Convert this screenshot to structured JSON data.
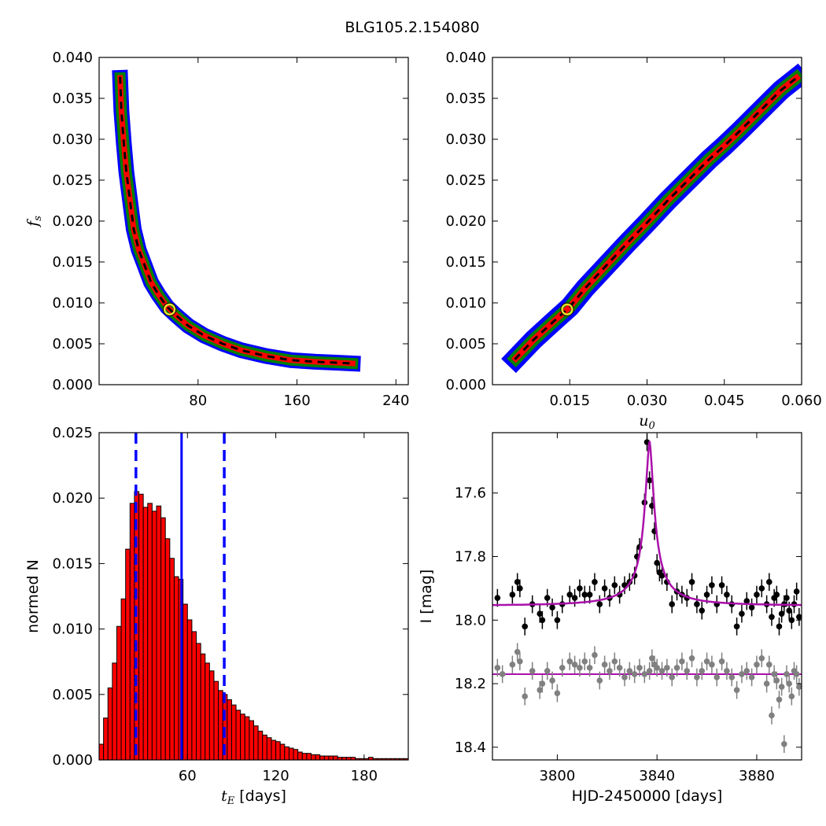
{
  "figure": {
    "title": "BLG105.2.154080"
  },
  "chart_data": [
    {
      "type": "heatmap",
      "panel": "fs-vs-tE",
      "xlabel": "",
      "ylabel": "f_s",
      "xlim": [
        0,
        250
      ],
      "ylim": [
        0,
        0.04
      ],
      "xticks": [
        "80",
        "160",
        "240"
      ],
      "yticks": [
        "0.000",
        "0.005",
        "0.010",
        "0.015",
        "0.020",
        "0.025",
        "0.030",
        "0.035",
        "0.040"
      ],
      "levels": {
        "outer": "#0000ff",
        "middle": "#008000",
        "inner": "#ff0000",
        "peak": "#000000"
      },
      "curve_center": [
        [
          17,
          0.0375
        ],
        [
          18,
          0.0335
        ],
        [
          20,
          0.0295
        ],
        [
          22,
          0.026
        ],
        [
          25,
          0.0225
        ],
        [
          28,
          0.019
        ],
        [
          32,
          0.0165
        ],
        [
          37,
          0.0145
        ],
        [
          42,
          0.0125
        ],
        [
          48,
          0.011
        ],
        [
          55,
          0.0095
        ],
        [
          62,
          0.0085
        ],
        [
          72,
          0.0072
        ],
        [
          85,
          0.006
        ],
        [
          100,
          0.005
        ],
        [
          115,
          0.0042
        ],
        [
          135,
          0.0035
        ],
        [
          155,
          0.003
        ],
        [
          175,
          0.0028
        ],
        [
          190,
          0.0027
        ],
        [
          205,
          0.0026
        ]
      ],
      "best_fit": {
        "x": 57,
        "y": 0.0092,
        "color": "#e2e22f"
      }
    },
    {
      "type": "heatmap",
      "panel": "fs-vs-u0",
      "xlabel": "u_0",
      "ylabel": "",
      "xlim": [
        0,
        0.06
      ],
      "ylim": [
        0,
        0.04
      ],
      "xticks": [
        "0.015",
        "0.030",
        "0.045",
        "0.060"
      ],
      "yticks": [
        "0.000",
        "0.005",
        "0.010",
        "0.015",
        "0.020",
        "0.025",
        "0.030",
        "0.035",
        "0.040"
      ],
      "levels": {
        "outer": "#0000ff",
        "middle": "#008000",
        "inner": "#ff0000",
        "peak": "#000000"
      },
      "curve_center": [
        [
          0.0045,
          0.0032
        ],
        [
          0.008,
          0.0055
        ],
        [
          0.012,
          0.0078
        ],
        [
          0.015,
          0.0095
        ],
        [
          0.018,
          0.0118
        ],
        [
          0.022,
          0.0145
        ],
        [
          0.026,
          0.0172
        ],
        [
          0.03,
          0.0198
        ],
        [
          0.034,
          0.0225
        ],
        [
          0.038,
          0.025
        ],
        [
          0.042,
          0.0275
        ],
        [
          0.045,
          0.0292
        ],
        [
          0.048,
          0.031
        ],
        [
          0.052,
          0.0335
        ],
        [
          0.056,
          0.036
        ],
        [
          0.059,
          0.0375
        ]
      ],
      "best_fit": {
        "x": 0.0145,
        "y": 0.0092,
        "color": "#e2e22f"
      }
    },
    {
      "type": "bar",
      "panel": "tE-histogram",
      "xlabel": "t_E [days]",
      "ylabel": "normed N",
      "xlim": [
        0,
        210
      ],
      "ylim": [
        0,
        0.025
      ],
      "xticks": [
        "60",
        "120",
        "180"
      ],
      "yticks": [
        "0.000",
        "0.005",
        "0.010",
        "0.015",
        "0.020",
        "0.025"
      ],
      "bin_width": 3,
      "bin_start": 0,
      "values": [
        0.0012,
        0.0032,
        0.0055,
        0.0074,
        0.0102,
        0.0123,
        0.0161,
        0.0196,
        0.0205,
        0.0203,
        0.0193,
        0.0196,
        0.019,
        0.0194,
        0.0185,
        0.0169,
        0.0154,
        0.014,
        0.0138,
        0.0119,
        0.0107,
        0.0098,
        0.0089,
        0.0081,
        0.0074,
        0.0068,
        0.006,
        0.0053,
        0.005,
        0.0046,
        0.0042,
        0.0038,
        0.0035,
        0.0033,
        0.003,
        0.0026,
        0.0022,
        0.0019,
        0.0017,
        0.0015,
        0.0014,
        0.0012,
        0.001,
        0.0009,
        0.0008,
        0.0006,
        0.0005,
        0.0005,
        0.0004,
        0.0004,
        0.0003,
        0.0003,
        0.0003,
        0.0003,
        0.0002,
        0.0002,
        0.0002,
        0.0002,
        0.0001,
        0.0001,
        0.0001,
        0.0002,
        0.0001,
        0.0001,
        0.0001,
        0.0001,
        0.0001,
        0.0001,
        0.0001,
        0.0001
      ],
      "bar_color": "#ff0000",
      "median": 56,
      "interval": [
        25,
        85
      ],
      "line_color": "#0000ff"
    },
    {
      "type": "scatter",
      "panel": "light-curve",
      "xlabel": "HJD-2450000 [days]",
      "ylabel": "I [mag]",
      "xlim": [
        3774,
        3898
      ],
      "ylim": [
        18.44,
        17.41
      ],
      "xticks": [
        "3800",
        "3840",
        "3880"
      ],
      "yticks": [
        "17.6",
        "17.8",
        "18.0",
        "18.2",
        "18.4"
      ],
      "model": {
        "t0": 3837.0,
        "baseline": 17.955,
        "peak_mag": 17.435,
        "width": 1.4,
        "color": "#aa10aa"
      },
      "residual_baseline": 18.17,
      "series": [
        {
          "name": "",
          "color": "#000000",
          "points": [
            [
              3776,
              17.93
            ],
            [
              3782,
              17.92
            ],
            [
              3784,
              17.88
            ],
            [
              3785,
              17.9
            ],
            [
              3787,
              18.02
            ],
            [
              3790,
              17.95
            ],
            [
              3793,
              17.98
            ],
            [
              3794,
              18.0
            ],
            [
              3796,
              17.93
            ],
            [
              3798,
              17.96
            ],
            [
              3800,
              18.0
            ],
            [
              3802,
              17.95
            ],
            [
              3805,
              17.92
            ],
            [
              3807,
              17.93
            ],
            [
              3809,
              17.9
            ],
            [
              3811,
              17.92
            ],
            [
              3813,
              17.92
            ],
            [
              3815,
              17.88
            ],
            [
              3817,
              17.95
            ],
            [
              3819,
              17.9
            ],
            [
              3821,
              17.93
            ],
            [
              3823,
              17.89
            ],
            [
              3825,
              17.92
            ],
            [
              3827,
              17.89
            ],
            [
              3829,
              17.88
            ],
            [
              3831,
              17.86
            ],
            [
              3832,
              17.8
            ],
            [
              3833,
              17.77
            ],
            [
              3835,
              17.63
            ],
            [
              3836,
              17.44
            ],
            [
              3837,
              17.56
            ],
            [
              3838,
              17.64
            ],
            [
              3839,
              17.72
            ],
            [
              3840,
              17.82
            ],
            [
              3841,
              17.85
            ],
            [
              3842,
              17.86
            ],
            [
              3844,
              17.88
            ],
            [
              3846,
              17.95
            ],
            [
              3848,
              17.91
            ],
            [
              3850,
              17.92
            ],
            [
              3852,
              17.93
            ],
            [
              3854,
              17.88
            ],
            [
              3856,
              17.95
            ],
            [
              3858,
              17.97
            ],
            [
              3860,
              17.92
            ],
            [
              3862,
              17.89
            ],
            [
              3864,
              17.95
            ],
            [
              3866,
              17.89
            ],
            [
              3868,
              17.92
            ],
            [
              3870,
              17.95
            ],
            [
              3872,
              18.02
            ],
            [
              3874,
              17.98
            ],
            [
              3876,
              17.94
            ],
            [
              3878,
              17.96
            ],
            [
              3880,
              17.92
            ],
            [
              3882,
              17.9
            ],
            [
              3884,
              17.95
            ],
            [
              3885,
              17.88
            ],
            [
              3886,
              17.99
            ],
            [
              3887,
              17.93
            ],
            [
              3888,
              17.92
            ],
            [
              3889,
              18.02
            ],
            [
              3890,
              17.98
            ],
            [
              3891,
              17.95
            ],
            [
              3892,
              17.93
            ],
            [
              3893,
              17.97
            ],
            [
              3894,
              18.0
            ],
            [
              3895,
              17.95
            ],
            [
              3896,
              17.91
            ],
            [
              3897,
              17.99
            ]
          ]
        },
        {
          "name": "",
          "color": "#808080",
          "points": [
            [
              3776,
              18.15
            ],
            [
              3778,
              18.17
            ],
            [
              3782,
              18.14
            ],
            [
              3784,
              18.1
            ],
            [
              3785,
              18.13
            ],
            [
              3787,
              18.24
            ],
            [
              3790,
              18.16
            ],
            [
              3793,
              18.22
            ],
            [
              3794,
              18.2
            ],
            [
              3796,
              18.16
            ],
            [
              3798,
              18.19
            ],
            [
              3800,
              18.23
            ],
            [
              3802,
              18.15
            ],
            [
              3805,
              18.13
            ],
            [
              3807,
              18.14
            ],
            [
              3809,
              18.15
            ],
            [
              3811,
              18.13
            ],
            [
              3813,
              18.15
            ],
            [
              3815,
              18.11
            ],
            [
              3817,
              18.19
            ],
            [
              3819,
              18.14
            ],
            [
              3821,
              18.16
            ],
            [
              3823,
              18.13
            ],
            [
              3825,
              18.15
            ],
            [
              3827,
              18.18
            ],
            [
              3829,
              18.16
            ],
            [
              3831,
              18.17
            ],
            [
              3833,
              18.15
            ],
            [
              3835,
              18.17
            ],
            [
              3837,
              18.16
            ],
            [
              3838,
              18.12
            ],
            [
              3839,
              18.14
            ],
            [
              3840,
              18.15
            ],
            [
              3842,
              18.16
            ],
            [
              3844,
              18.15
            ],
            [
              3846,
              18.18
            ],
            [
              3848,
              18.15
            ],
            [
              3850,
              18.13
            ],
            [
              3852,
              18.16
            ],
            [
              3854,
              18.12
            ],
            [
              3856,
              18.18
            ],
            [
              3858,
              18.16
            ],
            [
              3860,
              18.13
            ],
            [
              3862,
              18.14
            ],
            [
              3864,
              18.18
            ],
            [
              3866,
              18.13
            ],
            [
              3868,
              18.16
            ],
            [
              3870,
              18.18
            ],
            [
              3872,
              18.22
            ],
            [
              3874,
              18.17
            ],
            [
              3876,
              18.16
            ],
            [
              3878,
              18.18
            ],
            [
              3880,
              18.14
            ],
            [
              3882,
              18.12
            ],
            [
              3884,
              18.2
            ],
            [
              3885,
              18.14
            ],
            [
              3886,
              18.3
            ],
            [
              3887,
              18.17
            ],
            [
              3888,
              18.19
            ],
            [
              3889,
              18.25
            ],
            [
              3890,
              18.21
            ],
            [
              3891,
              18.39
            ],
            [
              3892,
              18.17
            ],
            [
              3893,
              18.2
            ],
            [
              3894,
              18.24
            ],
            [
              3895,
              18.16
            ],
            [
              3896,
              18.17
            ],
            [
              3897,
              18.21
            ]
          ]
        }
      ]
    }
  ]
}
